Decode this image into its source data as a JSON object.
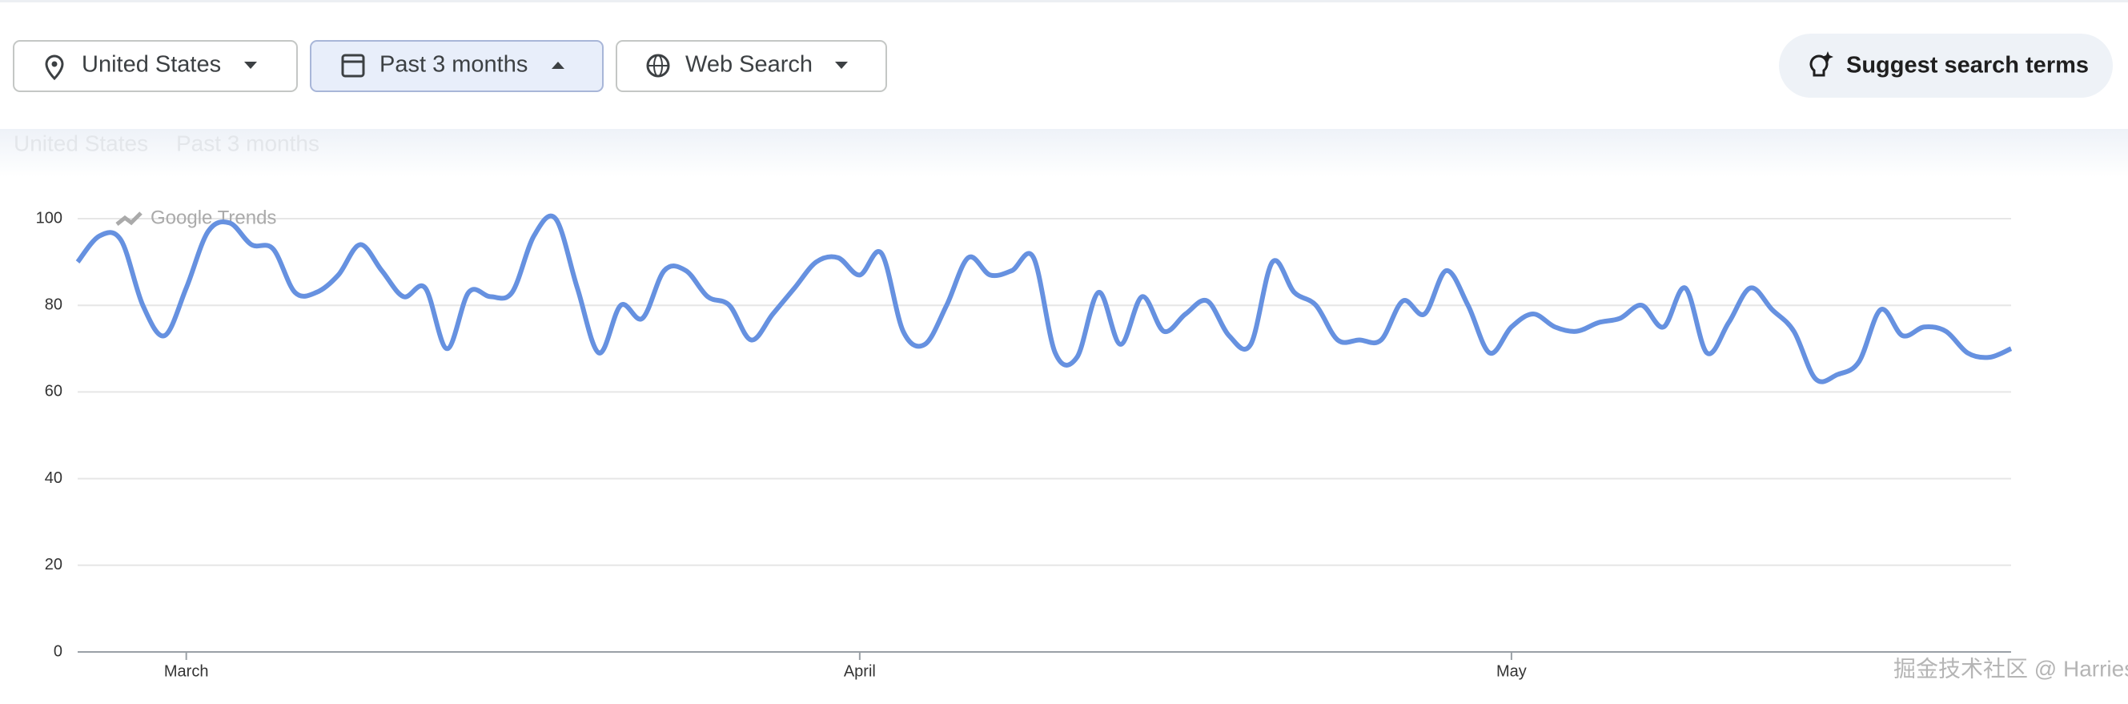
{
  "toolbar": {
    "location": "United States",
    "period": "Past 3 months",
    "property": "Web Search",
    "suggest": "Suggest search terms"
  },
  "chart_data": {
    "type": "line",
    "watermark": "Google Trends",
    "categories": [
      null,
      null,
      null,
      null,
      null,
      "March",
      null,
      null,
      null,
      null,
      null,
      null,
      null,
      null,
      null,
      null,
      null,
      null,
      null,
      null,
      null,
      null,
      null,
      null,
      null,
      null,
      null,
      null,
      null,
      null,
      null,
      null,
      null,
      null,
      null,
      null,
      "April",
      null,
      null,
      null,
      null,
      null,
      null,
      null,
      null,
      null,
      null,
      null,
      null,
      null,
      null,
      null,
      null,
      null,
      null,
      null,
      null,
      null,
      null,
      null,
      null,
      null,
      null,
      null,
      null,
      null,
      "May",
      null,
      null,
      null,
      null,
      null,
      null,
      null,
      null,
      null,
      null,
      null,
      null,
      null,
      null,
      null,
      null,
      null,
      null,
      null,
      null,
      null,
      null,
      null
    ],
    "values": [
      90,
      96,
      95,
      80,
      73,
      84,
      97,
      99,
      94,
      93,
      83,
      83,
      87,
      94,
      88,
      82,
      84,
      70,
      83,
      82,
      83,
      96,
      100,
      84,
      69,
      80,
      77,
      88,
      88,
      82,
      80,
      72,
      78,
      84,
      90,
      91,
      87,
      92,
      74,
      71,
      80,
      91,
      87,
      88,
      91,
      69,
      68,
      83,
      71,
      82,
      74,
      78,
      81,
      73,
      71,
      90,
      83,
      80,
      72,
      72,
      72,
      81,
      78,
      88,
      80,
      69,
      75,
      78,
      75,
      74,
      76,
      77,
      80,
      75,
      84,
      69,
      76,
      84,
      79,
      74,
      63,
      64,
      67,
      79,
      73,
      75,
      74,
      69,
      68,
      70
    ],
    "color": "#6691e0",
    "ylim": [
      0,
      100
    ],
    "yticks": [
      0,
      20,
      40,
      60,
      80,
      100
    ],
    "grid": true
  },
  "footer_watermark": "掘金技术社区 @ Harries"
}
